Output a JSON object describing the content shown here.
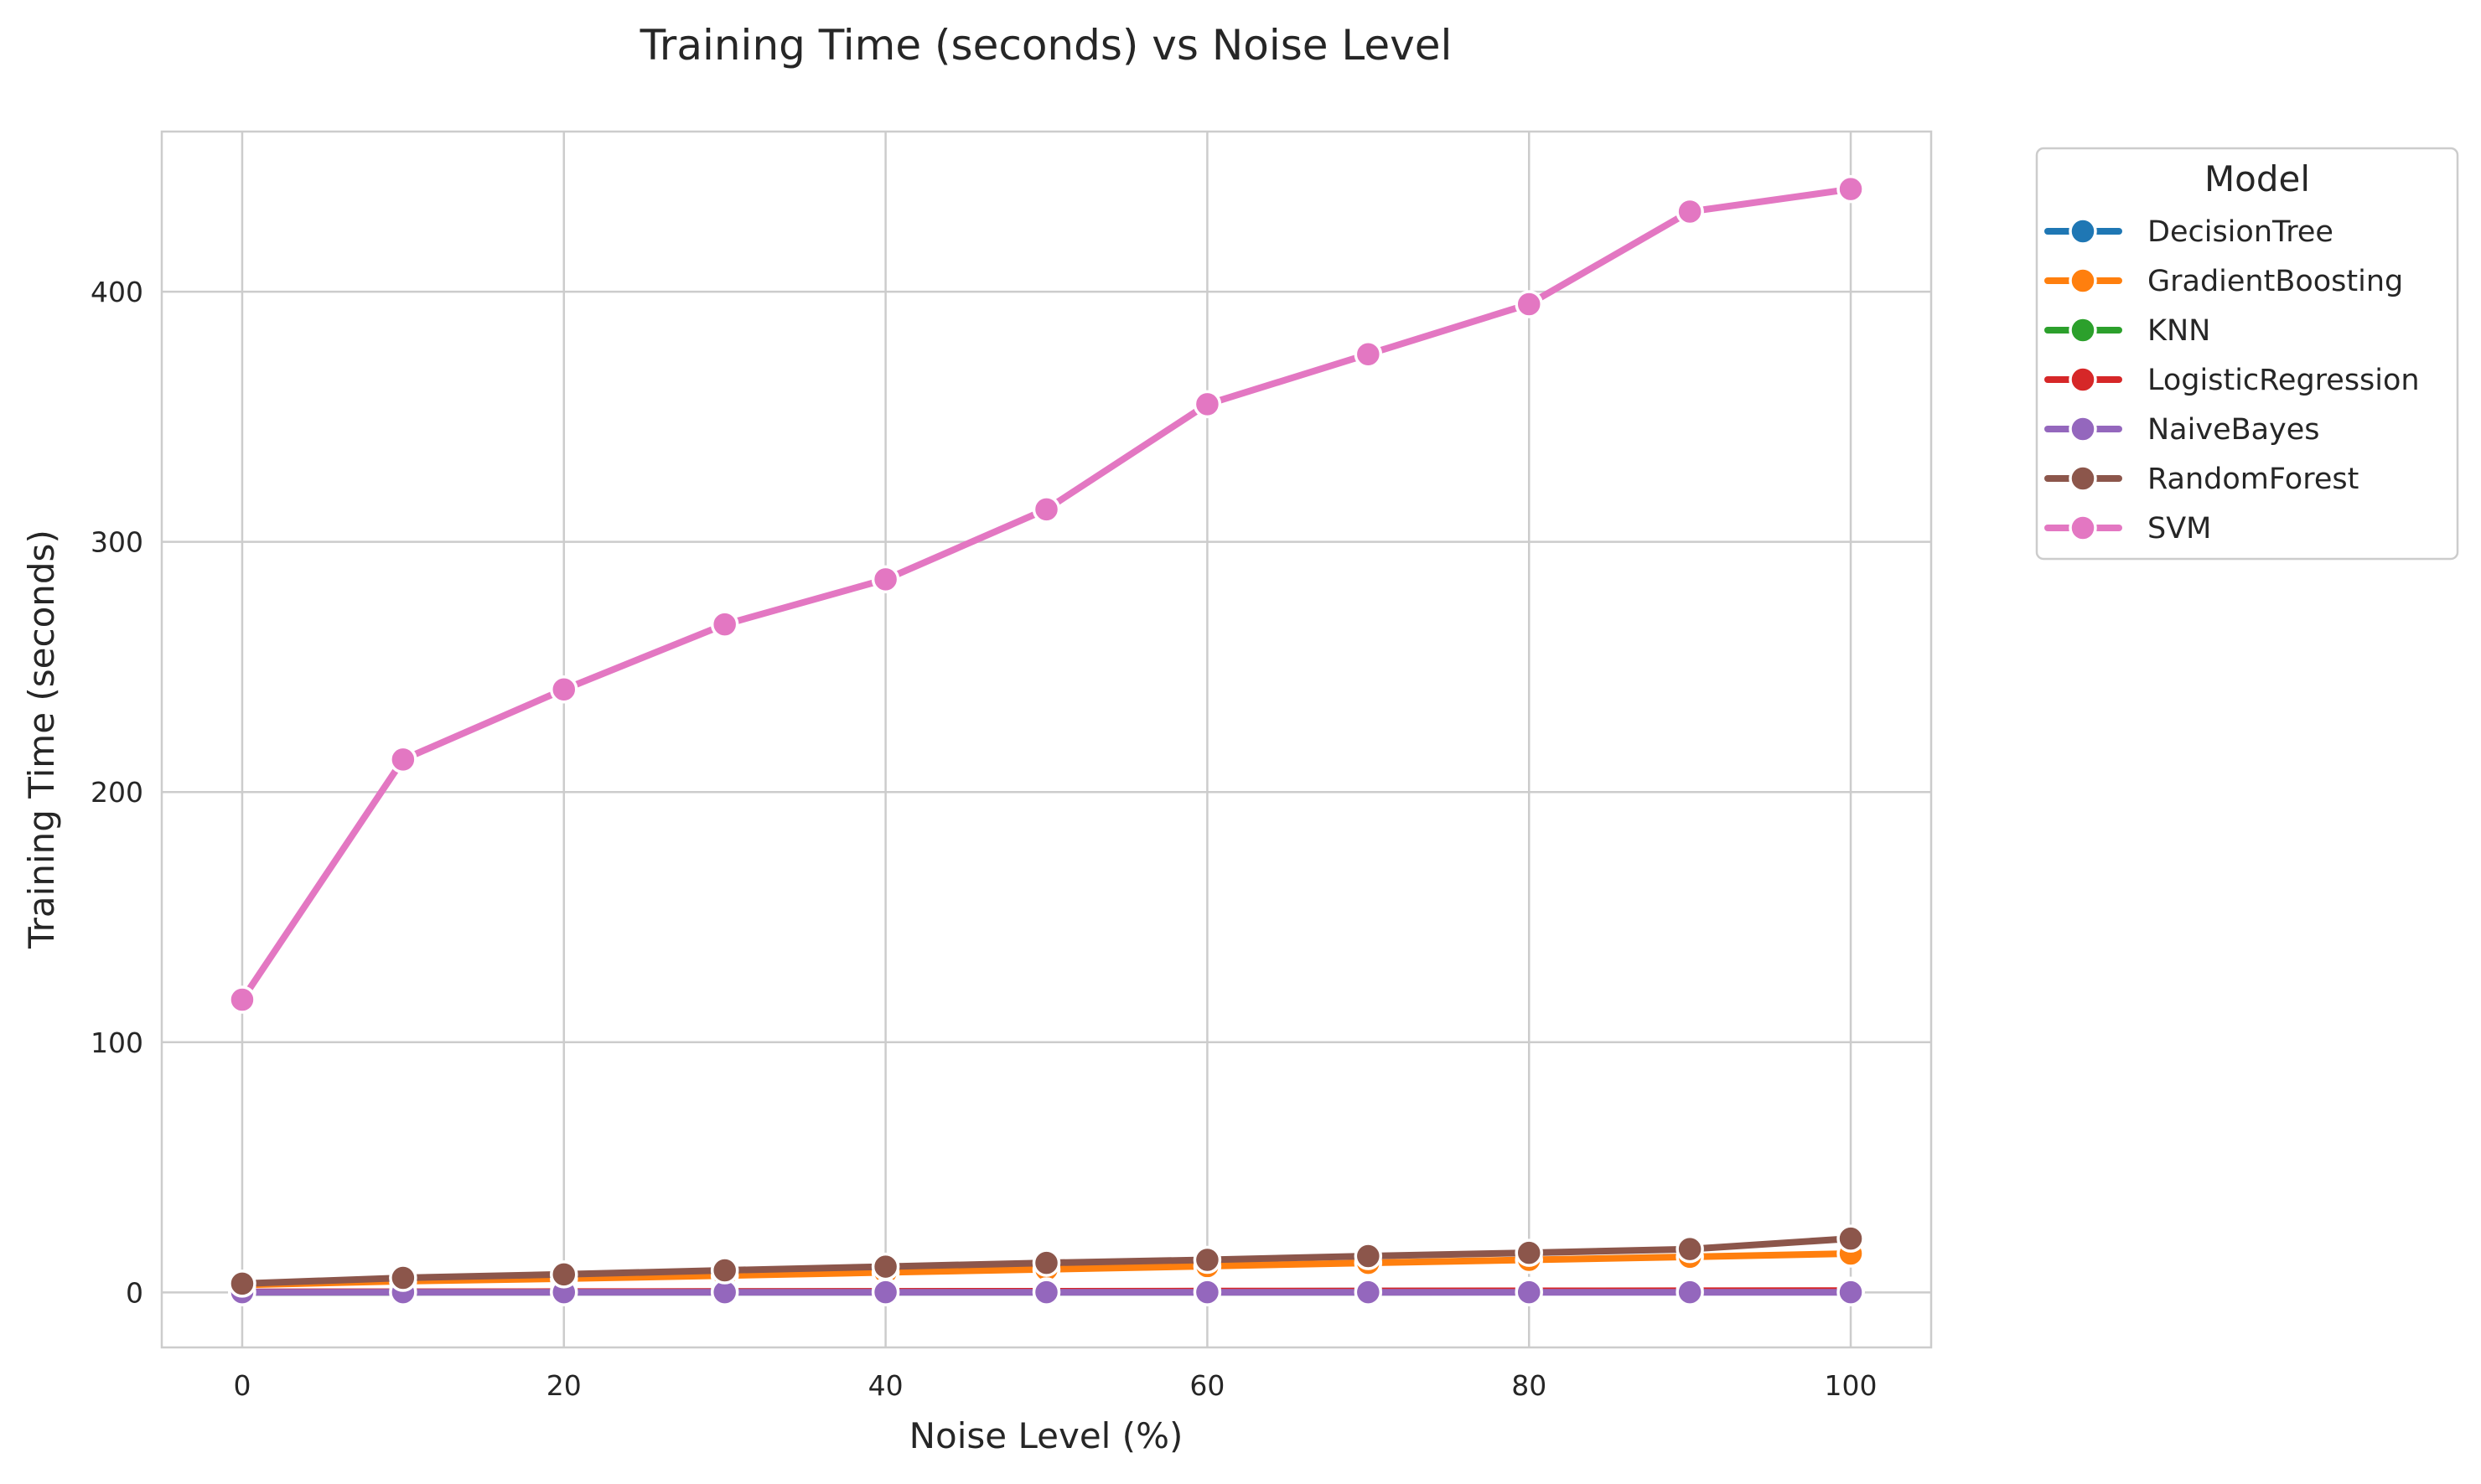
{
  "chart_data": {
    "type": "line",
    "title": "Training Time (seconds) vs Noise Level",
    "xlabel": "Noise Level (%)",
    "ylabel": "Training Time (seconds)",
    "x": [
      0,
      10,
      20,
      30,
      40,
      50,
      60,
      70,
      80,
      90,
      100
    ],
    "xticks": [
      "0",
      "20",
      "40",
      "60",
      "80",
      "100"
    ],
    "yticks": [
      "0",
      "100",
      "200",
      "300",
      "400"
    ],
    "xlim": [
      -5,
      105
    ],
    "ylim": [
      -22,
      464
    ],
    "grid": true,
    "legend": {
      "title": "Model",
      "placement": "outside-top-right"
    },
    "series": [
      {
        "name": "DecisionTree",
        "color": "#1f77b4",
        "values": [
          0.1,
          0.2,
          0.2,
          0.3,
          0.3,
          0.4,
          0.4,
          0.5,
          0.5,
          0.6,
          0.6
        ]
      },
      {
        "name": "GradientBoosting",
        "color": "#ff7f0e",
        "values": [
          3.0,
          4.5,
          5.5,
          6.7,
          8.0,
          9.2,
          10.5,
          11.8,
          13.0,
          14.2,
          15.5
        ]
      },
      {
        "name": "KNN",
        "color": "#2ca02c",
        "values": [
          0.05,
          0.05,
          0.06,
          0.06,
          0.07,
          0.07,
          0.08,
          0.08,
          0.09,
          0.09,
          0.1
        ]
      },
      {
        "name": "LogisticRegression",
        "color": "#d62728",
        "values": [
          0.2,
          0.25,
          0.3,
          0.35,
          0.4,
          0.45,
          0.5,
          0.55,
          0.6,
          0.65,
          0.7
        ]
      },
      {
        "name": "NaiveBayes",
        "color": "#9467bd",
        "values": [
          0.05,
          0.05,
          0.05,
          0.05,
          0.05,
          0.05,
          0.05,
          0.05,
          0.05,
          0.05,
          0.05
        ]
      },
      {
        "name": "RandomForest",
        "color": "#8c564b",
        "values": [
          3.5,
          5.8,
          7.2,
          8.8,
          10.3,
          11.8,
          13.0,
          14.5,
          15.8,
          17.3,
          21.5
        ]
      },
      {
        "name": "SVM",
        "color": "#e377c2",
        "values": [
          117,
          213,
          241,
          267,
          285,
          313,
          355,
          375,
          395,
          432,
          441
        ]
      }
    ]
  }
}
